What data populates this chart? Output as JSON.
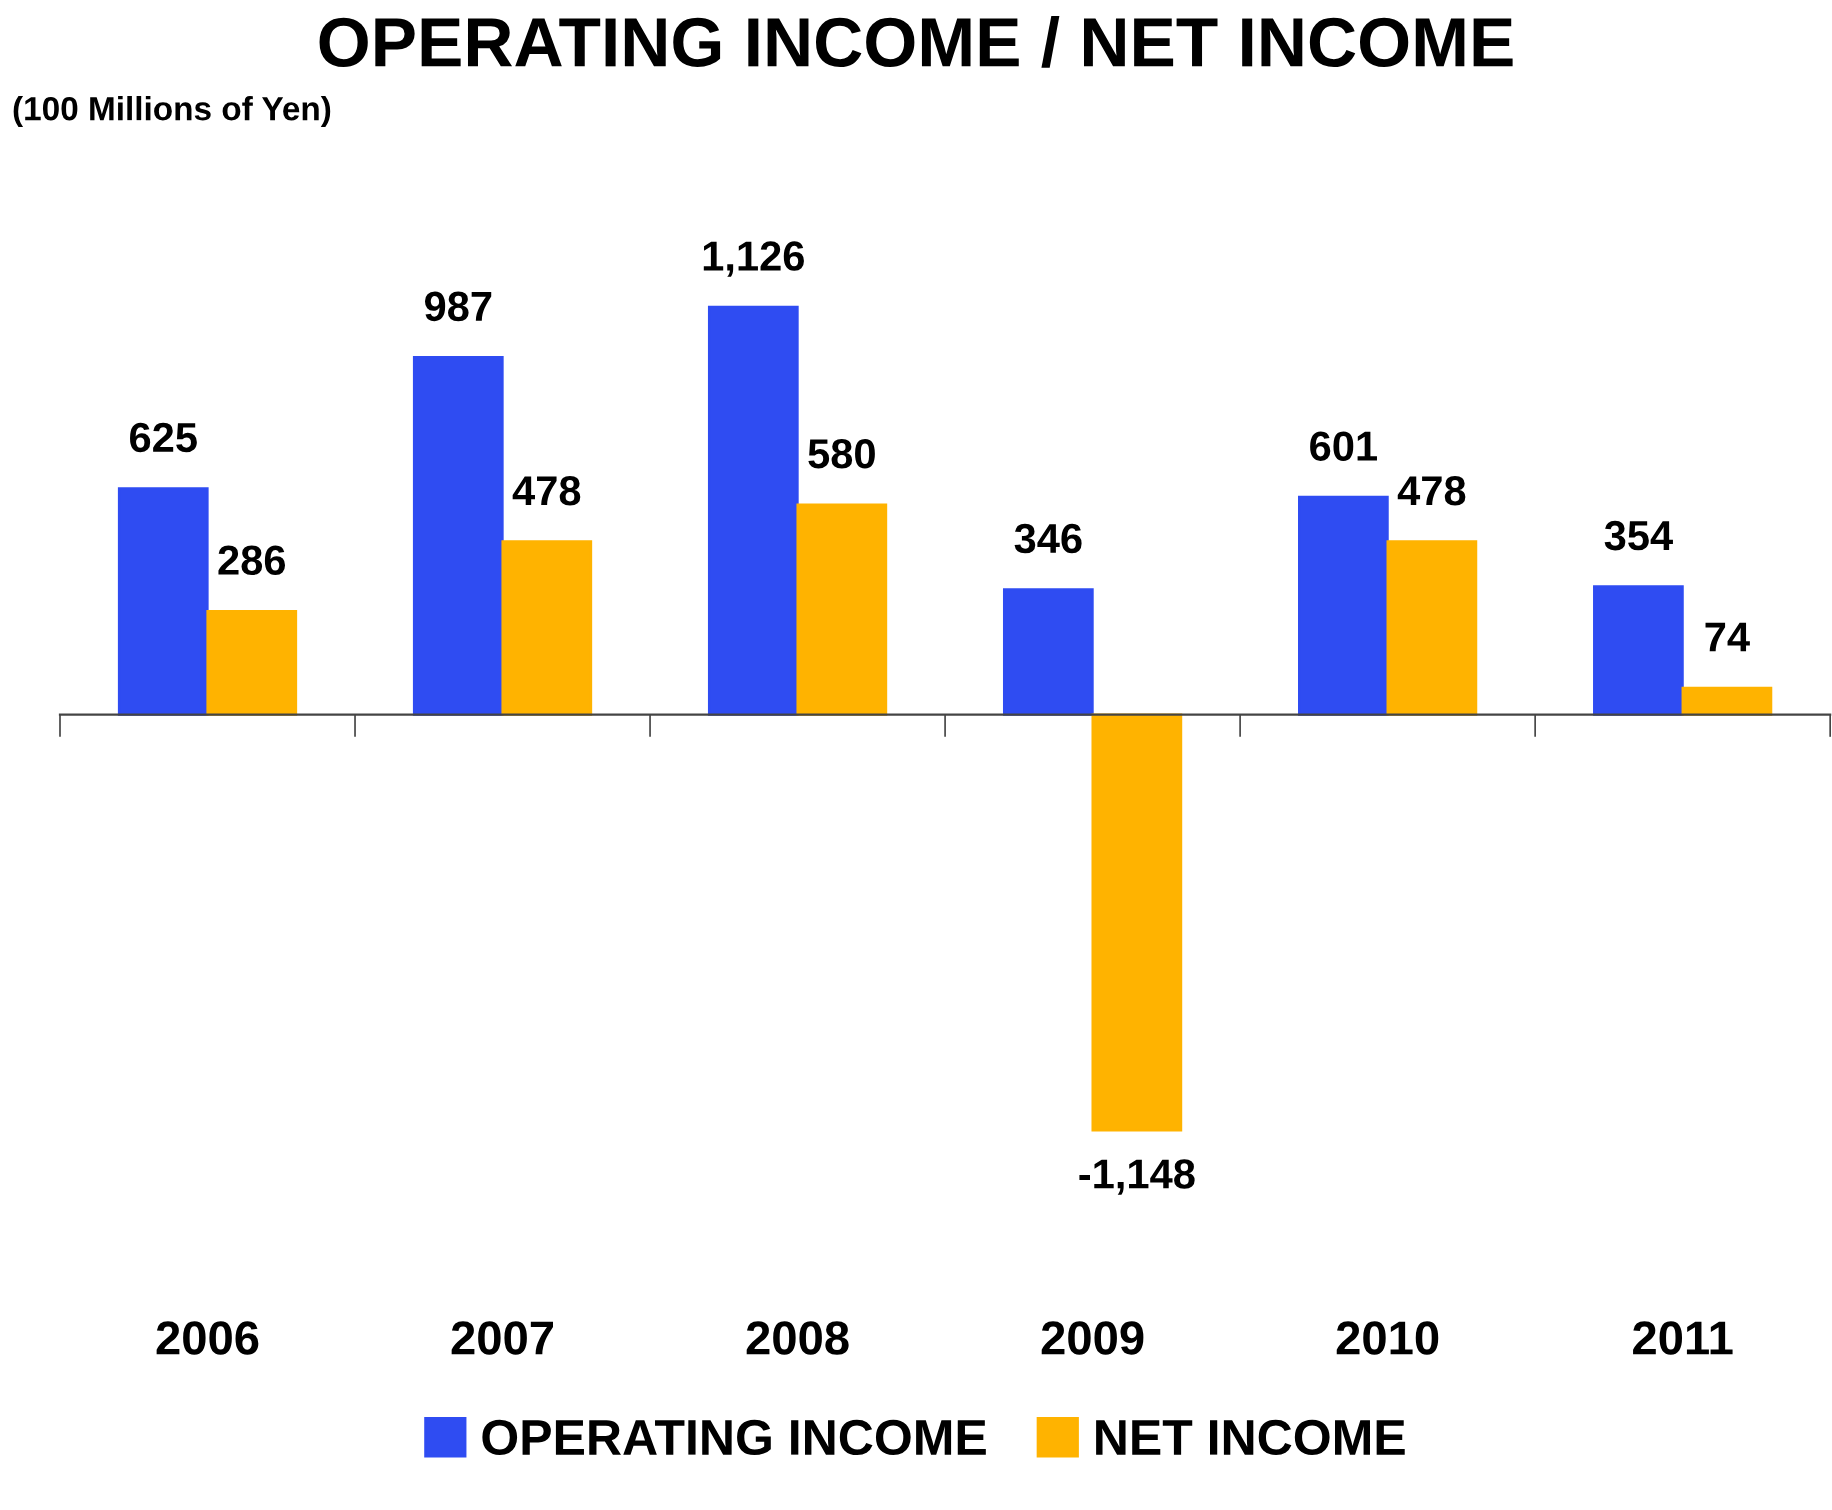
{
  "chart_data": {
    "type": "bar",
    "title": "OPERATING INCOME / NET INCOME",
    "subtitle": "(100 Millions of Yen)",
    "categories": [
      "2006",
      "2007",
      "2008",
      "2009",
      "2010",
      "2011"
    ],
    "series": [
      {
        "name": "OPERATING INCOME",
        "color": "#2f4cf2",
        "values": [
          625,
          987,
          1126,
          346,
          601,
          354
        ],
        "value_labels": [
          "625",
          "987",
          "1,126",
          "346",
          "601",
          "354"
        ]
      },
      {
        "name": "NET INCOME",
        "color": "#ffb300",
        "values": [
          286,
          478,
          580,
          -1148,
          478,
          74
        ],
        "value_labels": [
          "286",
          "478",
          "580",
          "-1,148",
          "478",
          "74"
        ]
      }
    ],
    "legend": "bottom",
    "grid": false
  }
}
